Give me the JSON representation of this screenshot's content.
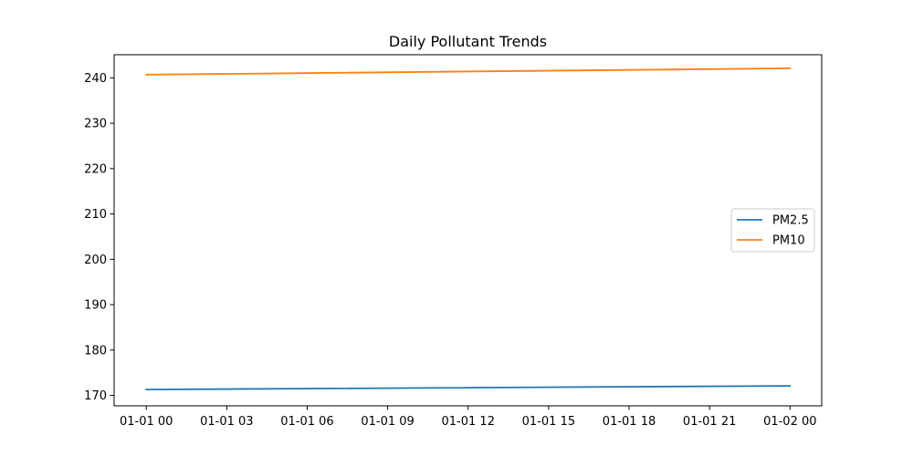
{
  "chart_data": {
    "type": "line",
    "title": "Daily Pollutant Trends",
    "xlabel": "",
    "ylabel": "",
    "x": [
      "01-01 00",
      "01-02 00"
    ],
    "x_tick_labels": [
      "01-01 00",
      "01-01 03",
      "01-01 06",
      "01-01 09",
      "01-01 12",
      "01-01 15",
      "01-01 18",
      "01-01 21",
      "01-02 00"
    ],
    "y_ticks": [
      170,
      180,
      190,
      200,
      210,
      220,
      230,
      240
    ],
    "ylim": [
      167.7,
      245.1
    ],
    "grid": false,
    "legend_position": "center-right",
    "series": [
      {
        "name": "PM2.5",
        "color": "#1f77b4",
        "values": [
          171.3,
          172.1
        ]
      },
      {
        "name": "PM10",
        "color": "#ff7f0e",
        "values": [
          240.7,
          242.1
        ]
      }
    ]
  }
}
